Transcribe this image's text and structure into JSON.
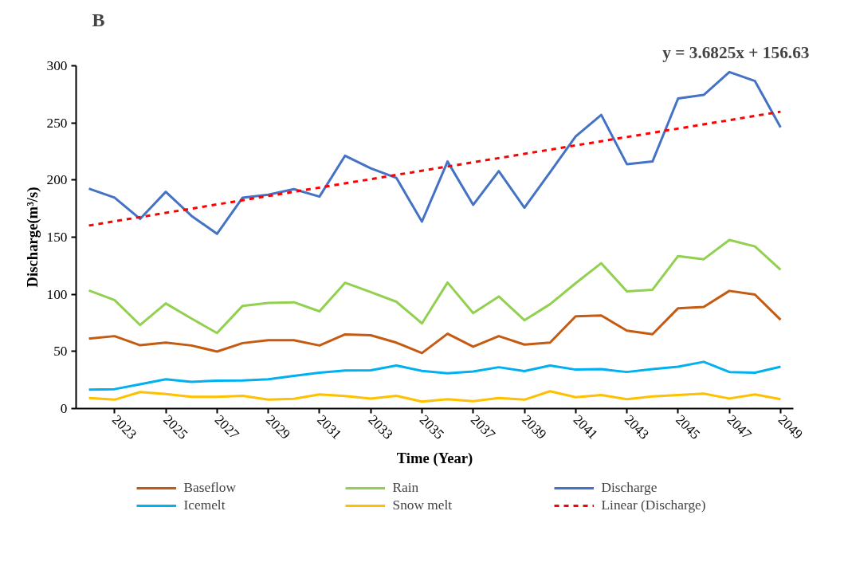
{
  "chart_data": {
    "type": "line",
    "title": "B",
    "xlabel": "Time (Year)",
    "ylabel": "Discharge(m³/s)",
    "annotations": [
      "y = 3.6825x + 156.63"
    ],
    "x": [
      2022,
      2023,
      2024,
      2025,
      2026,
      2027,
      2028,
      2029,
      2030,
      2031,
      2032,
      2033,
      2034,
      2035,
      2036,
      2037,
      2038,
      2039,
      2040,
      2041,
      2042,
      2043,
      2044,
      2045,
      2046,
      2047,
      2048,
      2049
    ],
    "xlim": [
      2021.5,
      2049.5
    ],
    "xticks": [
      2023,
      2025,
      2027,
      2029,
      2031,
      2033,
      2035,
      2037,
      2039,
      2041,
      2043,
      2045,
      2047,
      2049
    ],
    "ylim": [
      0,
      300
    ],
    "yticks": [
      0,
      50,
      100,
      150,
      200,
      250,
      300
    ],
    "grid": false,
    "legend": "bottom",
    "line_style": "solid",
    "marker": "none",
    "series": [
      {
        "name": "Baseflow",
        "color": "#c55a11",
        "values": [
          61.3,
          63.4,
          55.4,
          57.7,
          55.2,
          49.9,
          57.3,
          59.8,
          59.8,
          55.2,
          64.9,
          64.2,
          57.7,
          48.6,
          65.5,
          54.1,
          63.4,
          56,
          57.7,
          80.8,
          81.5,
          68.2,
          65.1,
          87.8,
          88.9,
          103,
          99.8,
          77.7
        ]
      },
      {
        "name": "Icemelt",
        "color": "#00b0f0",
        "values": [
          16.6,
          17,
          21.3,
          25.7,
          23.4,
          24.4,
          24.6,
          25.7,
          28.6,
          31.4,
          33.3,
          33.5,
          37.7,
          33,
          30.8,
          32.4,
          36.2,
          32.8,
          37.7,
          34.1,
          34.5,
          32,
          34.5,
          36.6,
          40.9,
          32,
          31.4,
          36.6
        ]
      },
      {
        "name": "Rain",
        "color": "#92d050",
        "values": [
          103.4,
          95,
          73.1,
          92,
          78.8,
          66.1,
          89.9,
          92.4,
          93,
          85.1,
          110.1,
          101.9,
          93.5,
          74.5,
          110.3,
          83.6,
          98.1,
          77.3,
          91.3,
          109.7,
          127.2,
          102.5,
          104,
          133.5,
          130.7,
          147.6,
          141.9,
          121.5
        ]
      },
      {
        "name": "Snow melt",
        "color": "#ffc000",
        "values": [
          9.3,
          7.8,
          14.5,
          12.8,
          10.3,
          10.3,
          11.2,
          7.8,
          8.6,
          12.4,
          11,
          8.8,
          11.2,
          6.1,
          8.2,
          6.5,
          9.3,
          7.8,
          15.2,
          9.9,
          11.8,
          8.2,
          10.7,
          11.8,
          13.1,
          8.8,
          12.4,
          8.2
        ]
      },
      {
        "name": "Discharge",
        "color": "#4472c4",
        "values": [
          192.5,
          184.6,
          166,
          189.7,
          168.7,
          152.9,
          184.6,
          187.2,
          192,
          185.5,
          221.3,
          210.3,
          201.9,
          163.6,
          216.2,
          178.3,
          207.8,
          175.8,
          206.8,
          238.1,
          257,
          213.9,
          216.2,
          271.4,
          274.5,
          294.5,
          286.6,
          246.1
        ]
      },
      {
        "name": "Linear (Discharge)",
        "color": "#ff0000",
        "line_style": "dashed",
        "x": [
          2022,
          2049
        ],
        "values": [
          160.2,
          259.8
        ]
      }
    ]
  }
}
